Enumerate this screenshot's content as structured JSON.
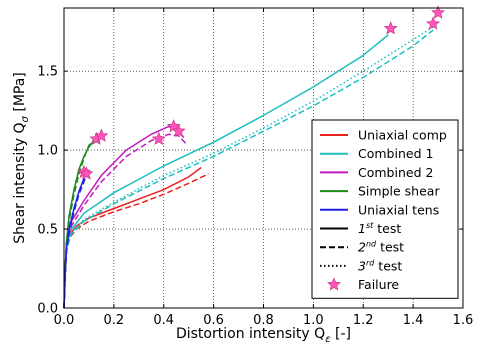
{
  "chart_data": {
    "type": "line",
    "title": "",
    "xlabel": "Distortion intensity Q",
    "xlabel_sub": "ε",
    "xlabel_unit": " [-]",
    "ylabel": "Shear intensity Q",
    "ylabel_sub": "σ",
    "ylabel_unit": " [MPa]",
    "xlim": [
      0.0,
      1.6
    ],
    "ylim": [
      0.0,
      1.9
    ],
    "xticks": [
      0.0,
      0.2,
      0.4,
      0.6,
      0.8,
      1.0,
      1.2,
      1.4,
      1.6
    ],
    "yticks": [
      0.0,
      0.5,
      1.0,
      1.5
    ],
    "xtick_labels": [
      "0.0",
      "0.2",
      "0.4",
      "0.6",
      "0.8",
      "1.0",
      "1.2",
      "1.4",
      "1.6"
    ],
    "ytick_labels": [
      "0.0",
      "0.5",
      "1.0",
      "1.5"
    ],
    "grid": true,
    "legend_position": "lower-right",
    "legend": [
      {
        "label": "Uniaxial comp",
        "kind": "line",
        "color": "#e8211f",
        "dash": "solid"
      },
      {
        "label": "Combined 1",
        "kind": "line",
        "color": "#1bbfbf",
        "dash": "solid"
      },
      {
        "label": "Combined 2",
        "kind": "line",
        "color": "#bf1bbf",
        "dash": "solid"
      },
      {
        "label": "Simple shear",
        "kind": "line",
        "color": "#1a8a1a",
        "dash": "solid"
      },
      {
        "label": "Uniaxial tens",
        "kind": "line",
        "color": "#1f1fe8",
        "dash": "solid"
      },
      {
        "label": "1",
        "sup": "st",
        "suffix": " test",
        "kind": "line",
        "color": "#000000",
        "dash": "solid"
      },
      {
        "label": "2",
        "sup": "nd",
        "suffix": " test",
        "kind": "line",
        "color": "#000000",
        "dash": "dashed"
      },
      {
        "label": "3",
        "sup": "rd",
        "suffix": " test",
        "kind": "line",
        "color": "#000000",
        "dash": "dotted"
      },
      {
        "label": "Failure",
        "kind": "star",
        "color": "#ff55bb"
      }
    ],
    "series": [
      {
        "color": "#e8211f",
        "dash": "solid",
        "x": [
          0,
          0.005,
          0.01,
          0.02,
          0.05,
          0.1,
          0.2,
          0.3,
          0.4,
          0.5,
          0.55
        ],
        "y": [
          0,
          0.22,
          0.38,
          0.46,
          0.52,
          0.57,
          0.63,
          0.69,
          0.75,
          0.83,
          0.89
        ]
      },
      {
        "color": "#e8211f",
        "dash": "dashed",
        "x": [
          0,
          0.005,
          0.01,
          0.02,
          0.05,
          0.1,
          0.2,
          0.3,
          0.4,
          0.5,
          0.58
        ],
        "y": [
          0,
          0.2,
          0.36,
          0.44,
          0.5,
          0.55,
          0.61,
          0.66,
          0.72,
          0.79,
          0.85
        ]
      },
      {
        "color": "#1bbfbf",
        "dash": "solid",
        "x": [
          0,
          0.005,
          0.01,
          0.03,
          0.08,
          0.2,
          0.4,
          0.6,
          0.8,
          1.0,
          1.2,
          1.3
        ],
        "y": [
          0,
          0.25,
          0.4,
          0.5,
          0.6,
          0.73,
          0.9,
          1.05,
          1.22,
          1.4,
          1.6,
          1.73
        ]
      },
      {
        "color": "#1bbfbf",
        "dash": "dashed",
        "x": [
          0,
          0.005,
          0.01,
          0.03,
          0.08,
          0.2,
          0.4,
          0.6,
          0.8,
          1.0,
          1.2,
          1.4,
          1.48
        ],
        "y": [
          0,
          0.22,
          0.37,
          0.47,
          0.55,
          0.66,
          0.82,
          0.96,
          1.12,
          1.28,
          1.46,
          1.66,
          1.76
        ]
      },
      {
        "color": "#1bbfbf",
        "dash": "dotted",
        "x": [
          0,
          0.005,
          0.01,
          0.03,
          0.08,
          0.2,
          0.4,
          0.6,
          0.8,
          1.0,
          1.2,
          1.4,
          1.5
        ],
        "y": [
          0,
          0.23,
          0.38,
          0.48,
          0.56,
          0.67,
          0.84,
          0.98,
          1.14,
          1.31,
          1.5,
          1.7,
          1.8
        ]
      },
      {
        "color": "#bf1bbf",
        "dash": "solid",
        "x": [
          0,
          0.005,
          0.01,
          0.03,
          0.08,
          0.15,
          0.25,
          0.35,
          0.42,
          0.46,
          0.48
        ],
        "y": [
          0,
          0.25,
          0.42,
          0.55,
          0.68,
          0.84,
          1.0,
          1.1,
          1.15,
          1.12,
          1.08
        ]
      },
      {
        "color": "#bf1bbf",
        "dash": "dashed",
        "x": [
          0,
          0.005,
          0.01,
          0.03,
          0.08,
          0.15,
          0.25,
          0.35,
          0.42,
          0.46,
          0.49
        ],
        "y": [
          0,
          0.23,
          0.4,
          0.52,
          0.65,
          0.8,
          0.96,
          1.06,
          1.1,
          1.09,
          1.04
        ]
      },
      {
        "color": "#1a8a1a",
        "dash": "solid",
        "x": [
          0,
          0.005,
          0.01,
          0.02,
          0.04,
          0.06,
          0.08,
          0.1,
          0.12
        ],
        "y": [
          0,
          0.25,
          0.42,
          0.58,
          0.75,
          0.88,
          0.96,
          1.02,
          1.06
        ]
      },
      {
        "color": "#1a8a1a",
        "dash": "dashed",
        "x": [
          0,
          0.005,
          0.01,
          0.02,
          0.04,
          0.06,
          0.08,
          0.1,
          0.13
        ],
        "y": [
          0,
          0.22,
          0.4,
          0.55,
          0.72,
          0.85,
          0.95,
          1.03,
          1.08
        ]
      },
      {
        "color": "#1f1fe8",
        "dash": "solid",
        "x": [
          0,
          0.005,
          0.01,
          0.02,
          0.04,
          0.06,
          0.08
        ],
        "y": [
          0,
          0.22,
          0.38,
          0.5,
          0.63,
          0.74,
          0.82
        ]
      },
      {
        "color": "#1f1fe8",
        "dash": "dashed",
        "x": [
          0,
          0.005,
          0.01,
          0.02,
          0.04,
          0.06,
          0.09
        ],
        "y": [
          0,
          0.2,
          0.36,
          0.48,
          0.61,
          0.72,
          0.84
        ]
      }
    ],
    "failure_points": [
      {
        "x": 0.08,
        "y": 0.86
      },
      {
        "x": 0.09,
        "y": 0.85
      },
      {
        "x": 0.13,
        "y": 1.07
      },
      {
        "x": 0.15,
        "y": 1.09
      },
      {
        "x": 0.38,
        "y": 1.07
      },
      {
        "x": 0.44,
        "y": 1.15
      },
      {
        "x": 0.46,
        "y": 1.12
      },
      {
        "x": 1.31,
        "y": 1.77
      },
      {
        "x": 1.48,
        "y": 1.8
      },
      {
        "x": 1.5,
        "y": 1.87
      }
    ]
  }
}
